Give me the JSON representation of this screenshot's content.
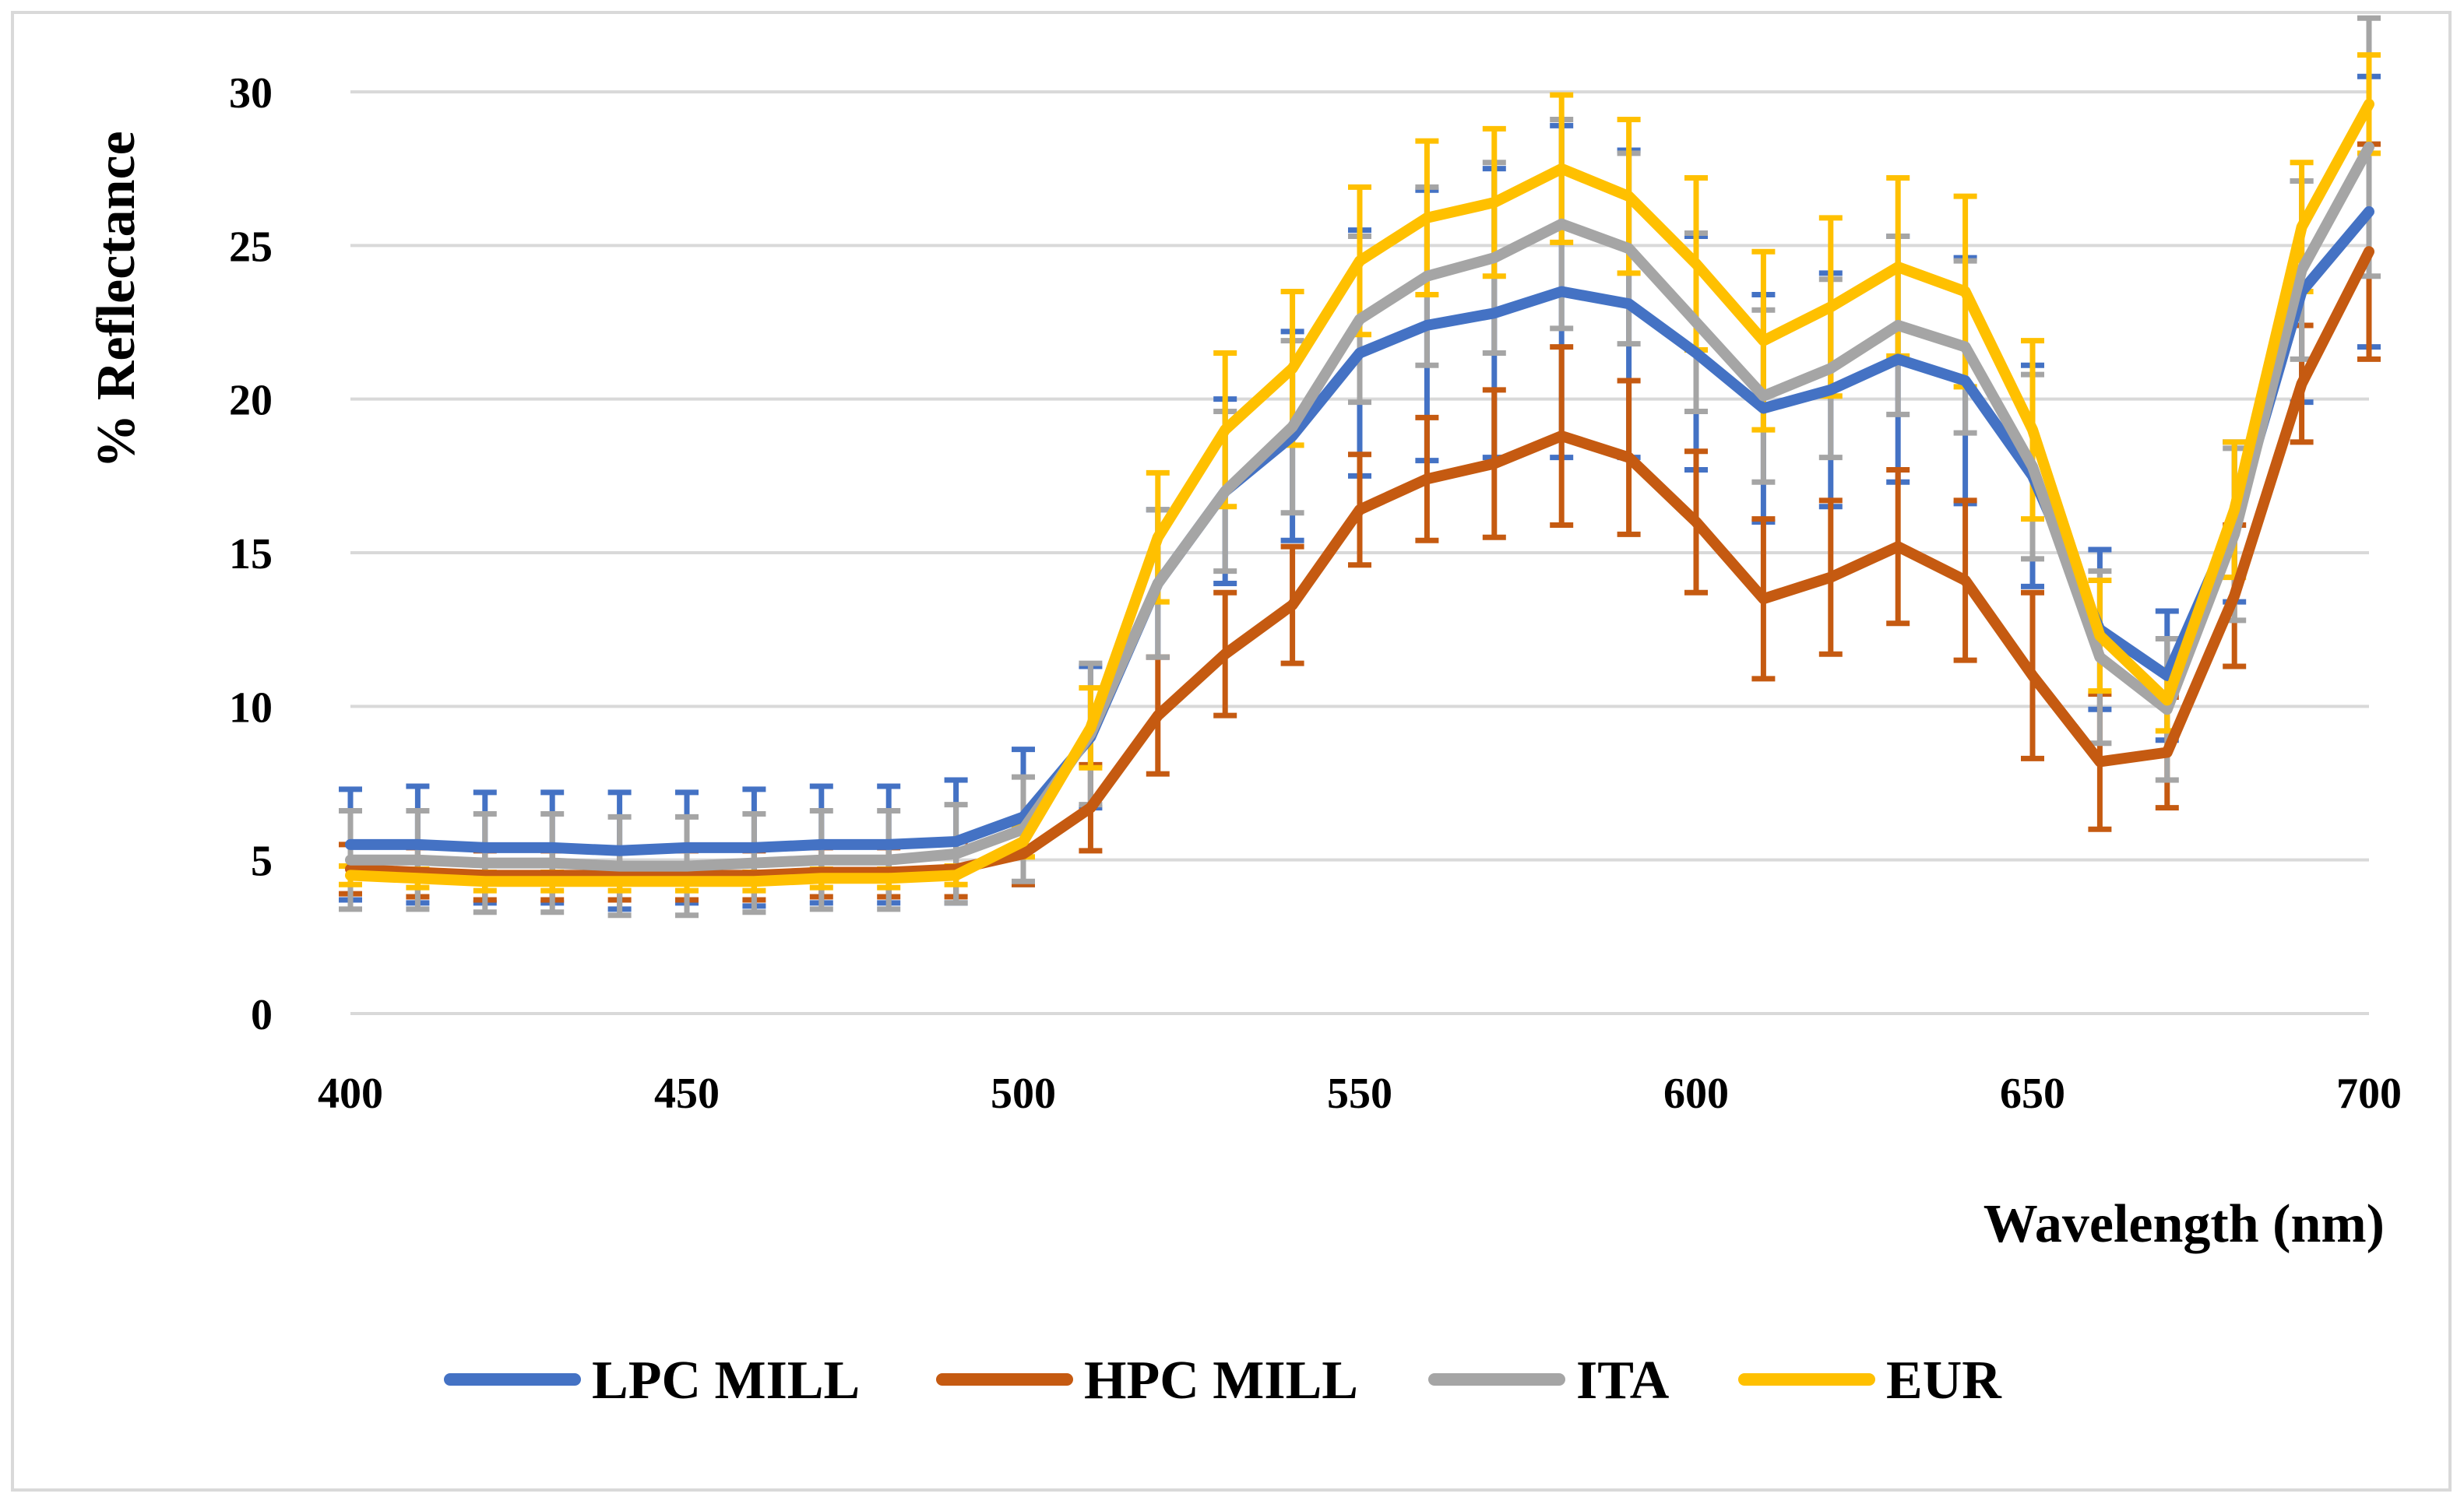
{
  "chart_data": {
    "type": "line",
    "title": "",
    "xlabel": "Wavelength (nm)",
    "ylabel": "% Reflectance",
    "xlim": [
      400,
      700
    ],
    "ylim": [
      0,
      30
    ],
    "x_ticks": [
      400,
      450,
      500,
      550,
      600,
      650,
      700
    ],
    "y_ticks": [
      0,
      5,
      10,
      15,
      20,
      25,
      30
    ],
    "grid": "horizontal",
    "legend_position": "bottom",
    "x": [
      400,
      410,
      420,
      430,
      440,
      450,
      460,
      470,
      480,
      490,
      500,
      510,
      520,
      530,
      540,
      550,
      560,
      570,
      580,
      590,
      600,
      610,
      620,
      630,
      640,
      650,
      660,
      670,
      680,
      690,
      700
    ],
    "series": [
      {
        "name": "LPC MILL",
        "color": "#4472c4",
        "values": [
          5.5,
          5.5,
          5.4,
          5.4,
          5.3,
          5.4,
          5.4,
          5.5,
          5.5,
          5.6,
          6.4,
          9.0,
          14.0,
          17.0,
          18.8,
          21.5,
          22.4,
          22.8,
          23.5,
          23.1,
          21.5,
          19.7,
          20.3,
          21.3,
          20.6,
          17.5,
          12.5,
          11.0,
          16.0,
          23.5,
          26.1
        ],
        "error": [
          1.8,
          1.9,
          1.8,
          1.8,
          1.9,
          1.8,
          1.9,
          1.9,
          1.9,
          2.0,
          2.2,
          2.3,
          2.4,
          3.0,
          3.4,
          4.0,
          4.4,
          4.7,
          5.4,
          5.0,
          3.8,
          3.7,
          3.8,
          4.0,
          4.0,
          3.6,
          2.6,
          2.1,
          2.6,
          3.6,
          4.4
        ]
      },
      {
        "name": "HPC MILL",
        "color": "#c55a11",
        "values": [
          4.7,
          4.6,
          4.5,
          4.5,
          4.5,
          4.5,
          4.5,
          4.6,
          4.6,
          4.7,
          5.2,
          6.7,
          9.7,
          11.7,
          13.3,
          16.4,
          17.4,
          17.9,
          18.8,
          18.1,
          16.0,
          13.5,
          14.2,
          15.2,
          14.1,
          11.0,
          8.2,
          8.5,
          13.6,
          20.5,
          24.8
        ],
        "error": [
          0.8,
          0.8,
          0.8,
          0.8,
          0.8,
          0.8,
          0.8,
          0.8,
          0.8,
          0.9,
          1.0,
          1.4,
          1.9,
          2.0,
          1.9,
          1.8,
          2.0,
          2.4,
          2.9,
          2.5,
          2.3,
          2.6,
          2.5,
          2.5,
          2.6,
          2.7,
          2.2,
          1.8,
          2.3,
          1.9,
          3.5
        ]
      },
      {
        "name": "ITA",
        "color": "#a5a5a5",
        "values": [
          5.0,
          5.0,
          4.9,
          4.9,
          4.8,
          4.8,
          4.9,
          5.0,
          5.0,
          5.2,
          6.0,
          9.1,
          14.0,
          17.0,
          19.1,
          22.6,
          24.0,
          24.6,
          25.7,
          24.9,
          22.5,
          20.1,
          21.0,
          22.4,
          21.7,
          17.8,
          11.6,
          9.9,
          15.6,
          24.2,
          28.2
        ],
        "error": [
          1.6,
          1.6,
          1.6,
          1.6,
          1.6,
          1.6,
          1.6,
          1.6,
          1.6,
          1.6,
          1.7,
          2.3,
          2.4,
          2.6,
          2.8,
          2.7,
          2.9,
          3.1,
          3.4,
          3.1,
          2.9,
          2.8,
          2.9,
          2.9,
          2.8,
          3.0,
          2.8,
          2.3,
          2.8,
          2.9,
          4.2
        ]
      },
      {
        "name": "EUR",
        "color": "#ffc000",
        "values": [
          4.5,
          4.4,
          4.3,
          4.3,
          4.3,
          4.3,
          4.3,
          4.4,
          4.4,
          4.5,
          5.6,
          9.3,
          15.5,
          19.0,
          21.0,
          24.5,
          25.9,
          26.4,
          27.5,
          26.6,
          24.4,
          21.9,
          23.0,
          24.3,
          23.5,
          19.0,
          12.3,
          10.2,
          16.4,
          25.6,
          29.6
        ],
        "error": [
          0.3,
          0.3,
          0.3,
          0.3,
          0.3,
          0.3,
          0.3,
          0.3,
          0.3,
          0.3,
          0.5,
          1.3,
          2.1,
          2.5,
          2.5,
          2.4,
          2.5,
          2.4,
          2.4,
          2.5,
          2.8,
          2.9,
          2.9,
          2.9,
          3.1,
          2.9,
          1.8,
          1.0,
          2.2,
          2.1,
          1.6
        ]
      }
    ]
  }
}
